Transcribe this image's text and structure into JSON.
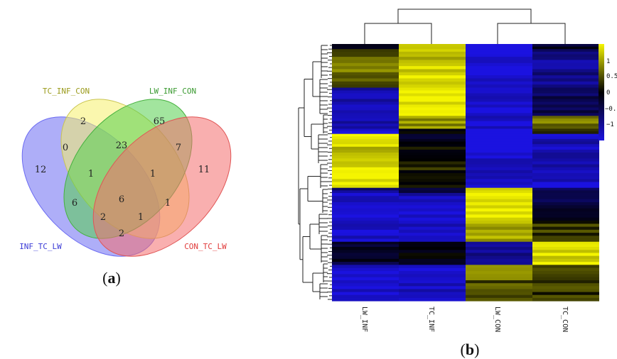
{
  "panel_a": {
    "caption": "(a)",
    "caption_letter": "a",
    "sets": [
      {
        "id": "inf_tc_lw",
        "label": "INF_TC_LW",
        "color": "#6b6bf2"
      },
      {
        "id": "tc_inf_con",
        "label": "TC_INF_CON",
        "color": "#f5f06b"
      },
      {
        "id": "lw_inf_con",
        "label": "LW_INF_CON",
        "color": "#55cf4e"
      },
      {
        "id": "con_tc_lw",
        "label": "CON_TC_LW",
        "color": "#f46e6e"
      }
    ],
    "label_colors": {
      "inf_tc_lw": "#3b3bd6",
      "tc_inf_con": "#9a9a1a",
      "lw_inf_con": "#3a9a30",
      "con_tc_lw": "#e03a3a"
    },
    "counts": {
      "only_inf_tc_lw": "12",
      "only_tc_inf_con": "2",
      "only_lw_inf_con": "65",
      "only_con_tc_lw": "11",
      "a_b": "0",
      "b_c": "23",
      "c_d": "7",
      "a_d": "2",
      "a_b_c": "1",
      "b_c_d": "1",
      "a_c": "6",
      "b_d": "1",
      "a_b_c_d": "6",
      "a_c_d": "2",
      "a_b_d": "1"
    }
  },
  "panel_b": {
    "caption": "(b)",
    "caption_letter": "b",
    "columns": [
      "LW_INF",
      "TC_INF",
      "LW_CON",
      "TC_CON"
    ],
    "legend_ticks": [
      "1",
      "0.5",
      "0",
      "−0.",
      "−1"
    ],
    "colors": {
      "low": "#1b12e0",
      "mid": "#000000",
      "high": "#f5f500"
    }
  }
}
